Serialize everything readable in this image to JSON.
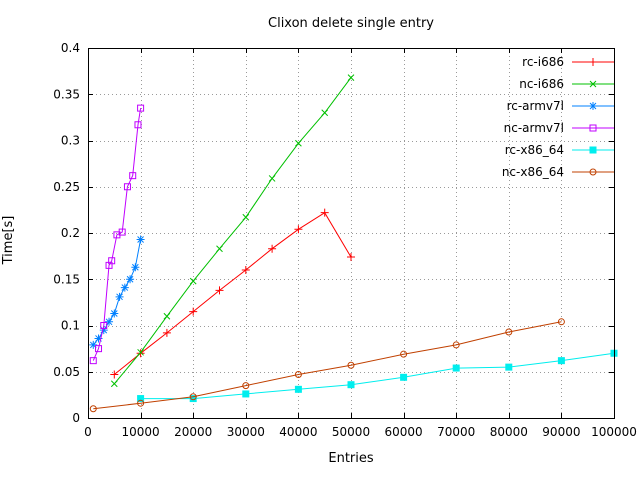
{
  "chart_data": {
    "type": "line",
    "title": "Clixon delete single entry",
    "xlabel": "Entries",
    "ylabel": "Time[s]",
    "xlim": [
      0,
      100000
    ],
    "ylim": [
      0,
      0.4
    ],
    "x_ticks": [
      0,
      10000,
      20000,
      30000,
      40000,
      50000,
      60000,
      70000,
      80000,
      90000,
      100000
    ],
    "x_tick_labels": [
      "0",
      "10000",
      "20000",
      "30000",
      "40000",
      "50000",
      "60000",
      "70000",
      "80000",
      "90000",
      "100000"
    ],
    "y_ticks": [
      0,
      0.05,
      0.1,
      0.15,
      0.2,
      0.25,
      0.3,
      0.35,
      0.4
    ],
    "y_tick_labels": [
      "0",
      "0.05",
      "0.1",
      "0.15",
      "0.2",
      "0.25",
      "0.3",
      "0.35",
      "0.4"
    ],
    "grid": true,
    "legend_position": "top-right-inside",
    "series": [
      {
        "name": "rc-i686",
        "color": "#ff0000",
        "marker": "plus",
        "points": [
          [
            5000,
            0.047
          ],
          [
            10000,
            0.07
          ],
          [
            15000,
            0.092
          ],
          [
            20000,
            0.115
          ],
          [
            25000,
            0.138
          ],
          [
            30000,
            0.16
          ],
          [
            35000,
            0.183
          ],
          [
            40000,
            0.204
          ],
          [
            45000,
            0.222
          ],
          [
            50000,
            0.174
          ]
        ]
      },
      {
        "name": "nc-i686",
        "color": "#00c000",
        "marker": "cross",
        "points": [
          [
            5000,
            0.037
          ],
          [
            10000,
            0.071
          ],
          [
            15000,
            0.11
          ],
          [
            20000,
            0.148
          ],
          [
            25000,
            0.183
          ],
          [
            30000,
            0.217
          ],
          [
            35000,
            0.259
          ],
          [
            40000,
            0.297
          ],
          [
            45000,
            0.33
          ],
          [
            50000,
            0.368
          ]
        ]
      },
      {
        "name": "rc-armv7l",
        "color": "#0080ff",
        "marker": "asterisk",
        "points": [
          [
            1000,
            0.079
          ],
          [
            2000,
            0.086
          ],
          [
            3000,
            0.095
          ],
          [
            4000,
            0.104
          ],
          [
            5000,
            0.113
          ],
          [
            6000,
            0.131
          ],
          [
            7000,
            0.141
          ],
          [
            8000,
            0.15
          ],
          [
            9000,
            0.163
          ],
          [
            10000,
            0.193
          ]
        ]
      },
      {
        "name": "nc-armv7l",
        "color": "#c000ff",
        "marker": "square-open",
        "points": [
          [
            1000,
            0.062
          ],
          [
            2000,
            0.075
          ],
          [
            3000,
            0.1
          ],
          [
            4000,
            0.165
          ],
          [
            4500,
            0.17
          ],
          [
            5500,
            0.198
          ],
          [
            6500,
            0.201
          ],
          [
            7500,
            0.25
          ],
          [
            8500,
            0.262
          ],
          [
            9500,
            0.317
          ],
          [
            10000,
            0.335
          ]
        ]
      },
      {
        "name": "rc-x86_64",
        "color": "#00eeee",
        "marker": "square-filled",
        "points": [
          [
            10000,
            0.021
          ],
          [
            20000,
            0.021
          ],
          [
            30000,
            0.026
          ],
          [
            40000,
            0.031
          ],
          [
            50000,
            0.036
          ],
          [
            60000,
            0.044
          ],
          [
            70000,
            0.054
          ],
          [
            80000,
            0.055
          ],
          [
            90000,
            0.062
          ],
          [
            100000,
            0.07
          ]
        ]
      },
      {
        "name": "nc-x86_64",
        "color": "#c04000",
        "marker": "circle-open",
        "points": [
          [
            1000,
            0.01
          ],
          [
            10000,
            0.016
          ],
          [
            20000,
            0.023
          ],
          [
            30000,
            0.035
          ],
          [
            40000,
            0.047
          ],
          [
            50000,
            0.057
          ],
          [
            60000,
            0.069
          ],
          [
            70000,
            0.079
          ],
          [
            80000,
            0.093
          ],
          [
            90000,
            0.104
          ]
        ]
      }
    ]
  }
}
